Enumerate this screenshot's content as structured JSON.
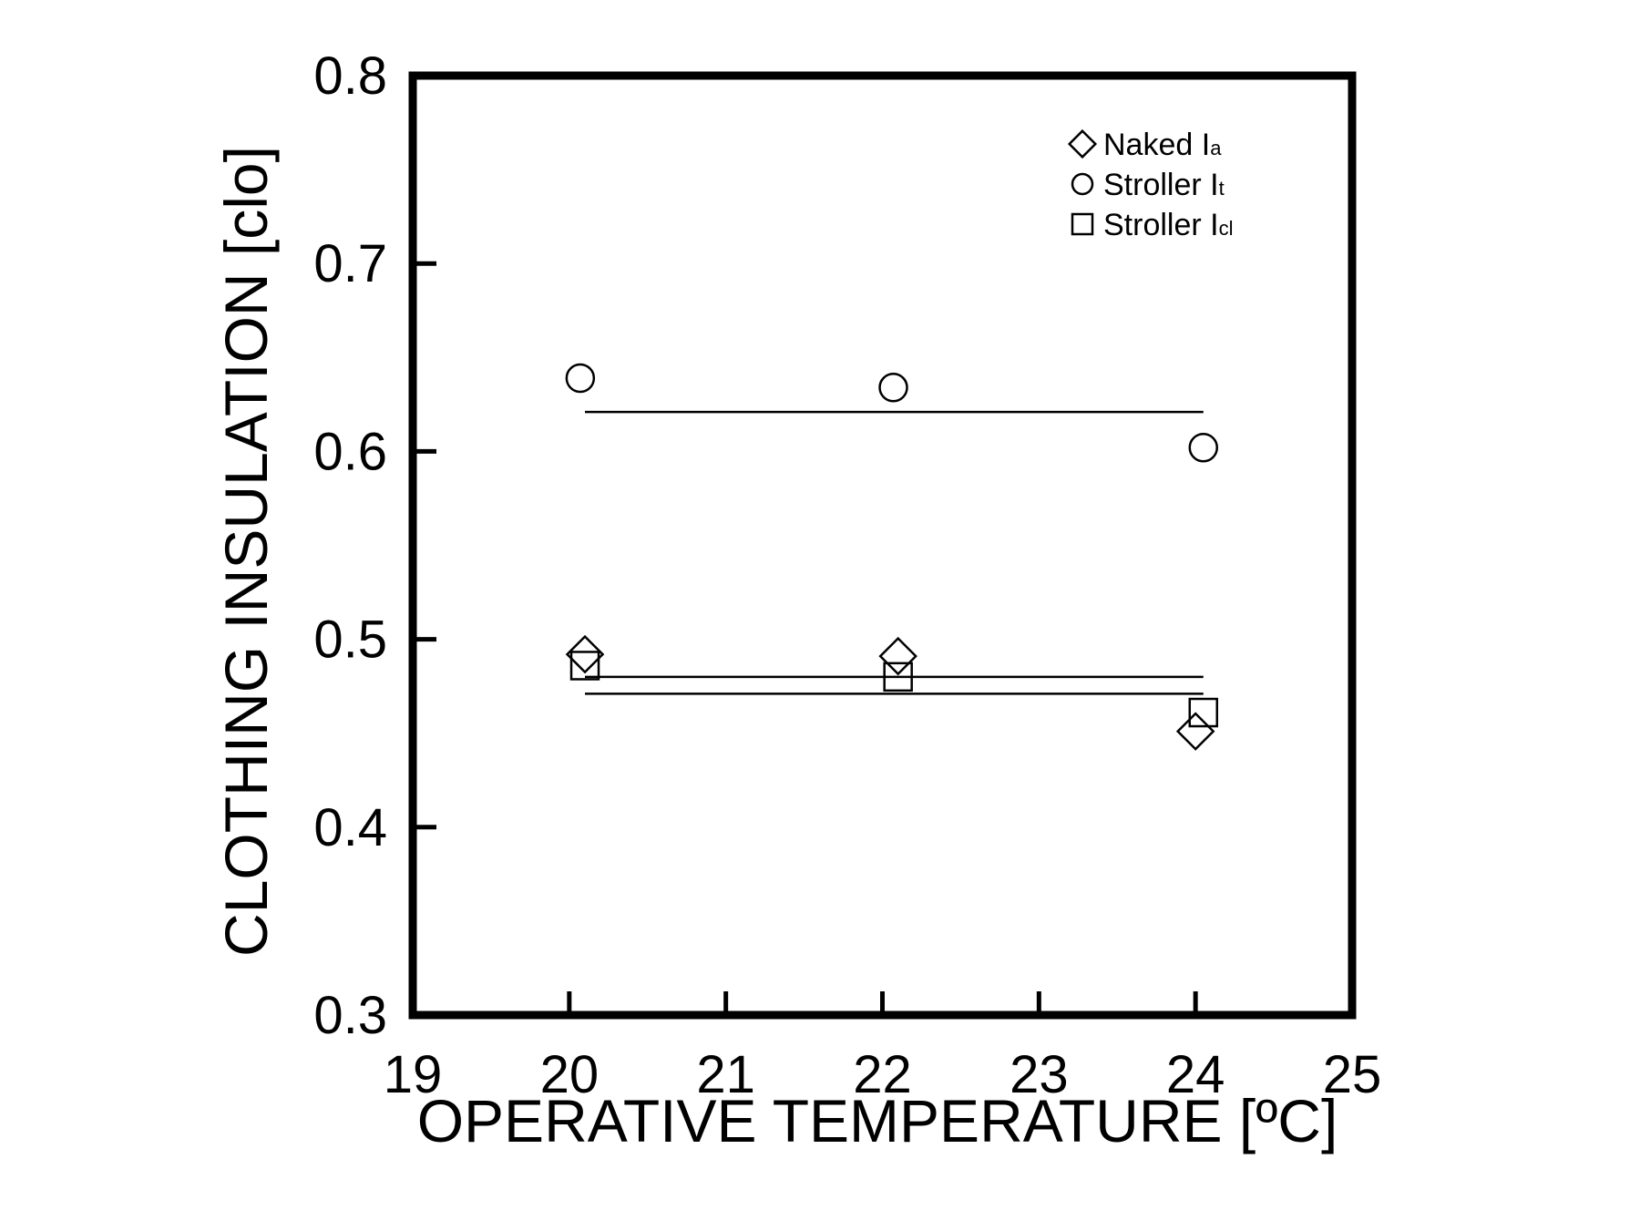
{
  "chart_data": {
    "type": "scatter",
    "title": "",
    "xlabel": "OPERATIVE TEMPERATURE [ºC]",
    "ylabel": "CLOTHING INSULATION [clo]",
    "xlim": [
      19,
      25
    ],
    "ylim": [
      0.3,
      0.8
    ],
    "x_ticks": [
      "19",
      "20",
      "21",
      "22",
      "23",
      "24",
      "25"
    ],
    "y_ticks": [
      "0.3",
      "0.4",
      "0.5",
      "0.6",
      "0.7",
      "0.8"
    ],
    "grid": false,
    "legend_position": "top-right",
    "series": [
      {
        "name": "Naked Ia",
        "name_main": "Naked",
        "name_symbol": "I",
        "name_subscript": "a",
        "marker": "diamond",
        "x": [
          20.1,
          22.1,
          24.0
        ],
        "y": [
          0.492,
          0.491,
          0.451
        ],
        "fit": {
          "x": [
            20.1,
            24.05
          ],
          "y": [
            0.48,
            0.48
          ]
        }
      },
      {
        "name": "Stroller It",
        "name_main": "Stroller",
        "name_symbol": "I",
        "name_subscript": "t",
        "marker": "circle",
        "x": [
          20.07,
          22.07,
          24.05
        ],
        "y": [
          0.639,
          0.634,
          0.602
        ],
        "fit": {
          "x": [
            20.1,
            24.05
          ],
          "y": [
            0.621,
            0.621
          ]
        }
      },
      {
        "name": "Stroller Icl",
        "name_main": "Stroller",
        "name_symbol": "I",
        "name_subscript": "cl",
        "marker": "square",
        "x": [
          20.1,
          22.1,
          24.05
        ],
        "y": [
          0.486,
          0.48,
          0.461
        ],
        "fit": {
          "x": [
            20.1,
            24.05
          ],
          "y": [
            0.471,
            0.471
          ]
        }
      }
    ]
  }
}
